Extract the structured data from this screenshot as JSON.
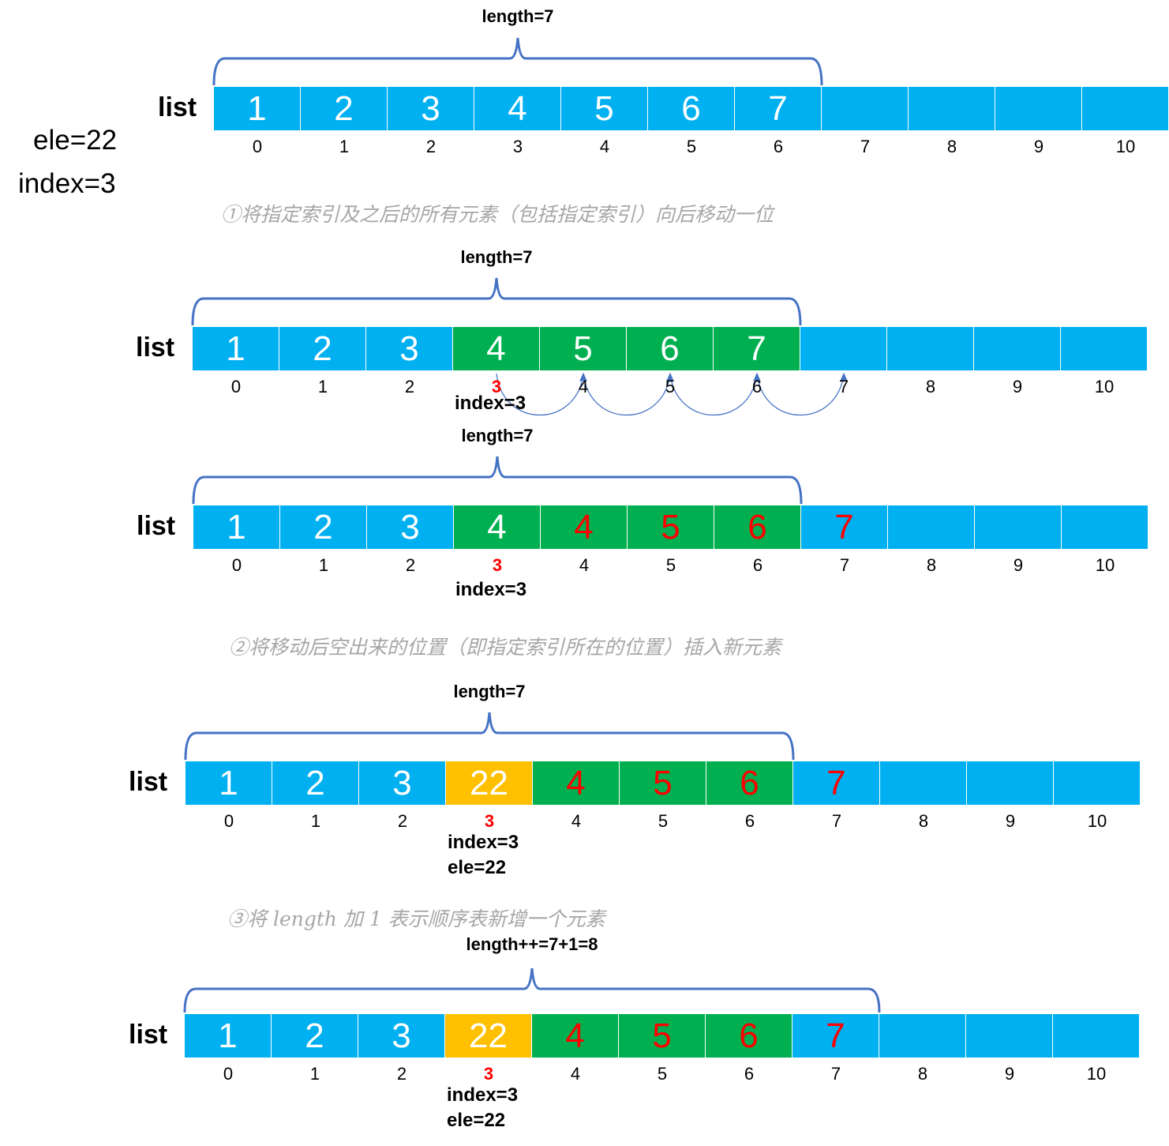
{
  "inputs": {
    "ele_label": "ele=22",
    "index_label": "index=3"
  },
  "steps": {
    "step1": "①将指定索引及之后的所有元素（包括指定索引）向后移动一位",
    "step2": "②将移动后空出来的位置（即指定索引所在的位置）插入新元素",
    "step3": "③将 length 加 1 表示顺序表新增一个元素"
  },
  "colors": {
    "blue": "#00b0f0",
    "green": "#00b050",
    "yellow": "#ffc000",
    "red_text": "#ff0000",
    "white_text": "#ffffff",
    "brace": "#4472c4"
  },
  "icons": {
    "brace": "curly-brace",
    "shift_arrows": "curved-arrows"
  },
  "diagrams": [
    {
      "list_label": "list",
      "length_label": "length=7",
      "brace_cells": 7,
      "cells": [
        {
          "value": "1",
          "fill": "blue",
          "text": "white"
        },
        {
          "value": "2",
          "fill": "blue",
          "text": "white"
        },
        {
          "value": "3",
          "fill": "blue",
          "text": "white"
        },
        {
          "value": "4",
          "fill": "blue",
          "text": "white"
        },
        {
          "value": "5",
          "fill": "blue",
          "text": "white"
        },
        {
          "value": "6",
          "fill": "blue",
          "text": "white"
        },
        {
          "value": "7",
          "fill": "blue",
          "text": "white"
        },
        {
          "value": "",
          "fill": "blue",
          "text": "white"
        },
        {
          "value": "",
          "fill": "blue",
          "text": "white"
        },
        {
          "value": "",
          "fill": "blue",
          "text": "white"
        },
        {
          "value": "",
          "fill": "blue",
          "text": "white"
        }
      ],
      "indices": [
        "0",
        "1",
        "2",
        "3",
        "4",
        "5",
        "6",
        "7",
        "8",
        "9",
        "10"
      ],
      "highlight_index": null,
      "notes": [],
      "arrows": false
    },
    {
      "list_label": "list",
      "length_label": "length=7",
      "brace_cells": 7,
      "cells": [
        {
          "value": "1",
          "fill": "blue",
          "text": "white"
        },
        {
          "value": "2",
          "fill": "blue",
          "text": "white"
        },
        {
          "value": "3",
          "fill": "blue",
          "text": "white"
        },
        {
          "value": "4",
          "fill": "green",
          "text": "white"
        },
        {
          "value": "5",
          "fill": "green",
          "text": "white"
        },
        {
          "value": "6",
          "fill": "green",
          "text": "white"
        },
        {
          "value": "7",
          "fill": "green",
          "text": "white"
        },
        {
          "value": "",
          "fill": "blue",
          "text": "white"
        },
        {
          "value": "",
          "fill": "blue",
          "text": "white"
        },
        {
          "value": "",
          "fill": "blue",
          "text": "white"
        },
        {
          "value": "",
          "fill": "blue",
          "text": "white"
        }
      ],
      "indices": [
        "0",
        "1",
        "2",
        "3",
        "4",
        "5",
        "6",
        "7",
        "8",
        "9",
        "10"
      ],
      "highlight_index": 3,
      "notes": [
        "index=3"
      ],
      "arrows": true
    },
    {
      "list_label": "list",
      "length_label": "length=7",
      "brace_cells": 7,
      "cells": [
        {
          "value": "1",
          "fill": "blue",
          "text": "white"
        },
        {
          "value": "2",
          "fill": "blue",
          "text": "white"
        },
        {
          "value": "3",
          "fill": "blue",
          "text": "white"
        },
        {
          "value": "4",
          "fill": "green",
          "text": "white"
        },
        {
          "value": "4",
          "fill": "green",
          "text": "red"
        },
        {
          "value": "5",
          "fill": "green",
          "text": "red"
        },
        {
          "value": "6",
          "fill": "green",
          "text": "red"
        },
        {
          "value": "7",
          "fill": "blue",
          "text": "red"
        },
        {
          "value": "",
          "fill": "blue",
          "text": "white"
        },
        {
          "value": "",
          "fill": "blue",
          "text": "white"
        },
        {
          "value": "",
          "fill": "blue",
          "text": "white"
        }
      ],
      "indices": [
        "0",
        "1",
        "2",
        "3",
        "4",
        "5",
        "6",
        "7",
        "8",
        "9",
        "10"
      ],
      "highlight_index": 3,
      "notes": [
        "index=3"
      ],
      "arrows": false
    },
    {
      "list_label": "list",
      "length_label": "length=7",
      "brace_cells": 7,
      "cells": [
        {
          "value": "1",
          "fill": "blue",
          "text": "white"
        },
        {
          "value": "2",
          "fill": "blue",
          "text": "white"
        },
        {
          "value": "3",
          "fill": "blue",
          "text": "white"
        },
        {
          "value": "22",
          "fill": "yellow",
          "text": "white"
        },
        {
          "value": "4",
          "fill": "green",
          "text": "red"
        },
        {
          "value": "5",
          "fill": "green",
          "text": "red"
        },
        {
          "value": "6",
          "fill": "green",
          "text": "red"
        },
        {
          "value": "7",
          "fill": "blue",
          "text": "red"
        },
        {
          "value": "",
          "fill": "blue",
          "text": "white"
        },
        {
          "value": "",
          "fill": "blue",
          "text": "white"
        },
        {
          "value": "",
          "fill": "blue",
          "text": "white"
        }
      ],
      "indices": [
        "0",
        "1",
        "2",
        "3",
        "4",
        "5",
        "6",
        "7",
        "8",
        "9",
        "10"
      ],
      "highlight_index": 3,
      "notes": [
        "index=3",
        "ele=22"
      ],
      "arrows": false
    },
    {
      "list_label": "list",
      "length_label": "length++=7+1=8",
      "brace_cells": 8,
      "cells": [
        {
          "value": "1",
          "fill": "blue",
          "text": "white"
        },
        {
          "value": "2",
          "fill": "blue",
          "text": "white"
        },
        {
          "value": "3",
          "fill": "blue",
          "text": "white"
        },
        {
          "value": "22",
          "fill": "yellow",
          "text": "white"
        },
        {
          "value": "4",
          "fill": "green",
          "text": "red"
        },
        {
          "value": "5",
          "fill": "green",
          "text": "red"
        },
        {
          "value": "6",
          "fill": "green",
          "text": "red"
        },
        {
          "value": "7",
          "fill": "blue",
          "text": "red"
        },
        {
          "value": "",
          "fill": "blue",
          "text": "white"
        },
        {
          "value": "",
          "fill": "blue",
          "text": "white"
        },
        {
          "value": "",
          "fill": "blue",
          "text": "white"
        }
      ],
      "indices": [
        "0",
        "1",
        "2",
        "3",
        "4",
        "5",
        "6",
        "7",
        "8",
        "9",
        "10"
      ],
      "highlight_index": 3,
      "notes": [
        "index=3",
        "ele=22"
      ],
      "arrows": false
    }
  ]
}
